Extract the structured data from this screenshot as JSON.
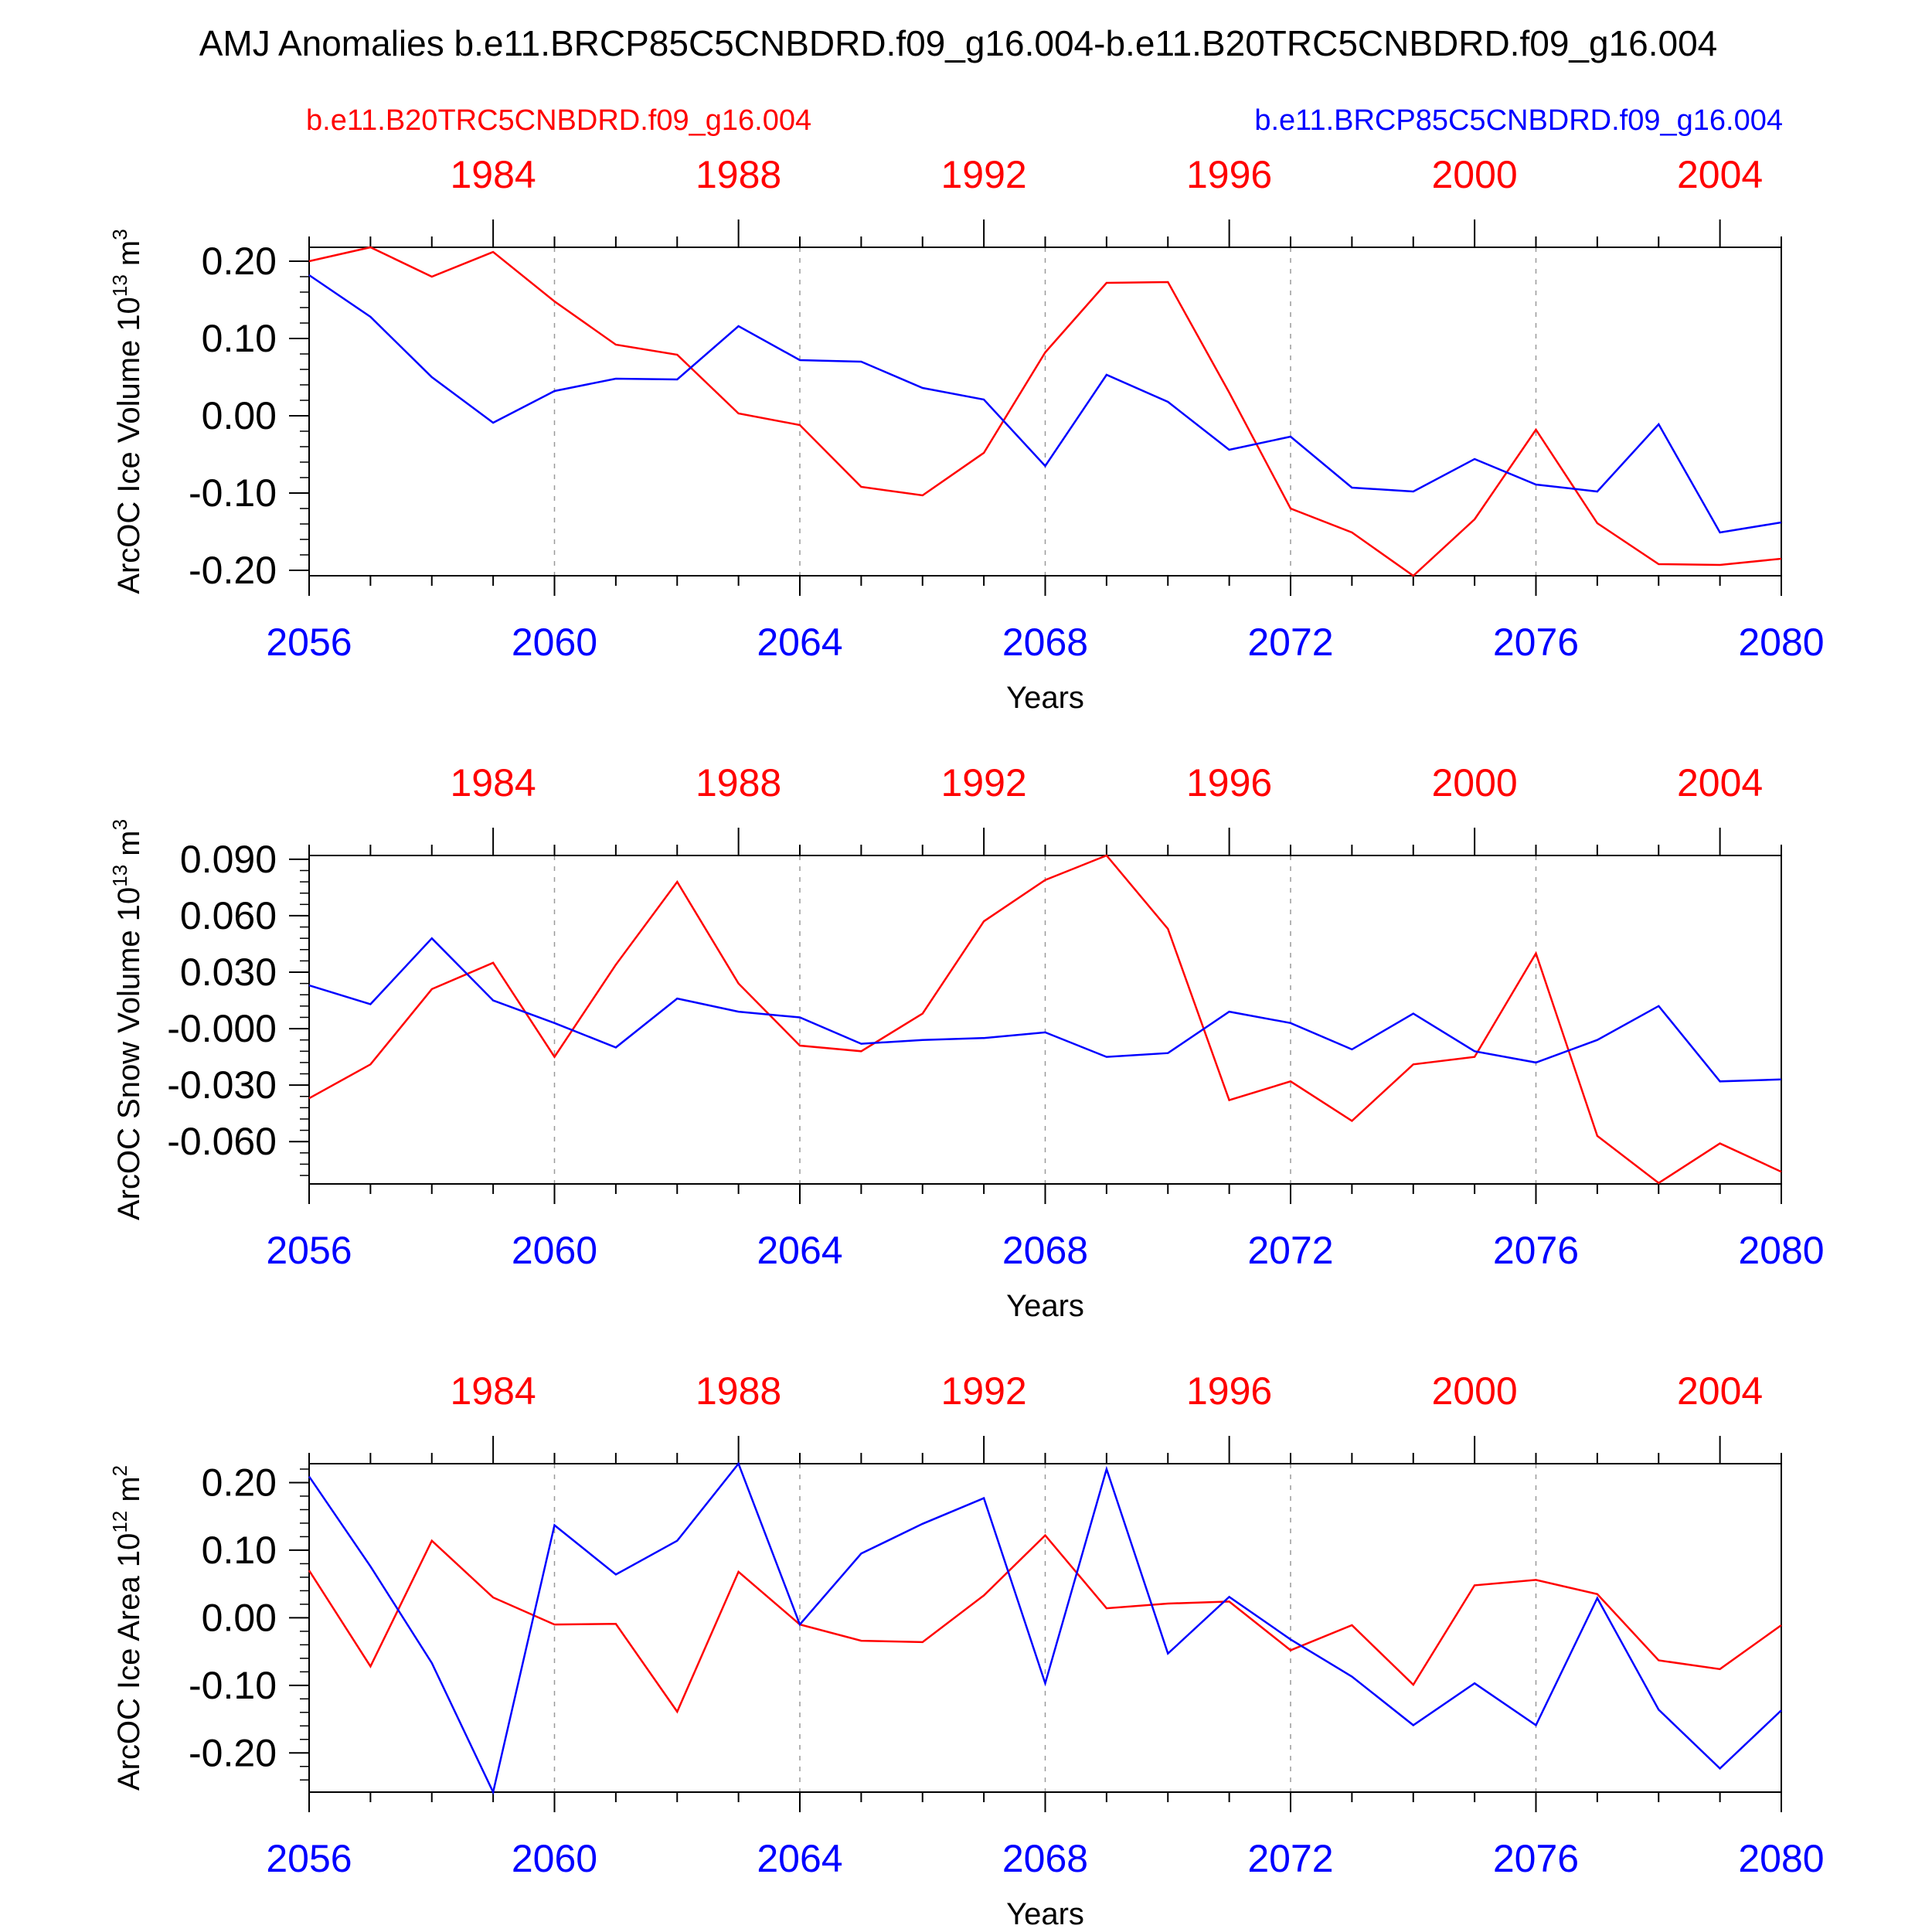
{
  "title": "AMJ Anomalies b.e11.BRCP85C5CNBDRD.f09_g16.004-b.e11.B20TRC5CNBDRD.f09_g16.004",
  "legend": {
    "red_label": "b.e11.B20TRC5CNBDRD.f09_g16.004",
    "blue_label": "b.e11.BRCP85C5CNBDRD.f09_g16.004"
  },
  "colors": {
    "red": "#ff0000",
    "blue": "#0000ff",
    "axis": "#000000",
    "grid": "#9a9a9a"
  },
  "chart_data": [
    {
      "type": "line",
      "ylabel_main": "ArcOC Ice Volume 10",
      "ylabel_sup": "13",
      "ylabel_unit": " m",
      "ylabel_unit_sup": "3",
      "xlabel": "Years",
      "x": [
        2056,
        2057,
        2058,
        2059,
        2060,
        2061,
        2062,
        2063,
        2064,
        2065,
        2066,
        2067,
        2068,
        2069,
        2070,
        2071,
        2072,
        2073,
        2074,
        2075,
        2076,
        2077,
        2078,
        2079,
        2080
      ],
      "xlim": [
        2056,
        2080
      ],
      "ylim": [
        -0.207,
        0.218
      ],
      "yticks": [
        0.2,
        0.1,
        0.0,
        -0.1,
        -0.2
      ],
      "ytick_labels": [
        "0.20",
        "0.10",
        "0.00",
        "-0.10",
        "-0.20"
      ],
      "yminor_step": 0.02,
      "bottom_ticks": [
        2056,
        2060,
        2064,
        2068,
        2072,
        2076,
        2080
      ],
      "bottom_tick_labels": [
        "2056",
        "2060",
        "2064",
        "2068",
        "2072",
        "2076",
        "2080"
      ],
      "top_ticks": [
        2059,
        2063,
        2067,
        2071,
        2075,
        2079
      ],
      "top_tick_labels": [
        "1984",
        "1988",
        "1992",
        "1996",
        "2000",
        "2004"
      ],
      "series": [
        {
          "name": "b.e11.B20TRC5CNBDRD.f09_g16.004",
          "color": "red",
          "values": [
            0.2,
            0.218,
            0.18,
            0.212,
            0.148,
            0.092,
            0.079,
            0.003,
            -0.012,
            -0.092,
            -0.103,
            -0.048,
            0.082,
            0.172,
            0.173,
            0.03,
            -0.12,
            -0.151,
            -0.207,
            -0.134,
            -0.018,
            -0.139,
            -0.192,
            -0.193,
            -0.185
          ]
        },
        {
          "name": "b.e11.BRCP85C5CNBDRD.f09_g16.004",
          "color": "blue",
          "values": [
            0.182,
            0.128,
            0.05,
            -0.009,
            0.032,
            0.048,
            0.047,
            0.116,
            0.072,
            0.07,
            0.036,
            0.021,
            -0.065,
            0.053,
            0.018,
            -0.044,
            -0.027,
            -0.093,
            -0.098,
            -0.056,
            -0.089,
            -0.098,
            -0.011,
            -0.151,
            -0.138
          ]
        }
      ]
    },
    {
      "type": "line",
      "ylabel_main": "ArcOC Snow Volume 10",
      "ylabel_sup": "13",
      "ylabel_unit": " m",
      "ylabel_unit_sup": "3",
      "xlabel": "Years",
      "x": [
        2056,
        2057,
        2058,
        2059,
        2060,
        2061,
        2062,
        2063,
        2064,
        2065,
        2066,
        2067,
        2068,
        2069,
        2070,
        2071,
        2072,
        2073,
        2074,
        2075,
        2076,
        2077,
        2078,
        2079,
        2080
      ],
      "xlim": [
        2056,
        2080
      ],
      "ylim": [
        -0.0825,
        0.092
      ],
      "yticks": [
        0.09,
        0.06,
        0.03,
        0.0,
        -0.03,
        -0.06
      ],
      "ytick_labels": [
        "0.090",
        "0.060",
        "0.030",
        "-0.000",
        "-0.030",
        "-0.060"
      ],
      "yminor_step": 0.006,
      "bottom_ticks": [
        2056,
        2060,
        2064,
        2068,
        2072,
        2076,
        2080
      ],
      "bottom_tick_labels": [
        "2056",
        "2060",
        "2064",
        "2068",
        "2072",
        "2076",
        "2080"
      ],
      "top_ticks": [
        2059,
        2063,
        2067,
        2071,
        2075,
        2079
      ],
      "top_tick_labels": [
        "1984",
        "1988",
        "1992",
        "1996",
        "2000",
        "2004"
      ],
      "series": [
        {
          "name": "b.e11.B20TRC5CNBDRD.f09_g16.004",
          "color": "red",
          "values": [
            -0.037,
            -0.019,
            0.021,
            0.035,
            -0.015,
            0.034,
            0.078,
            0.024,
            -0.009,
            -0.012,
            0.008,
            0.057,
            0.079,
            0.092,
            0.053,
            -0.038,
            -0.028,
            -0.049,
            -0.019,
            -0.015,
            0.04,
            -0.057,
            -0.082,
            -0.061,
            -0.076
          ]
        },
        {
          "name": "b.e11.BRCP85C5CNBDRD.f09_g16.004",
          "color": "blue",
          "values": [
            0.023,
            0.013,
            0.048,
            0.015,
            0.003,
            -0.01,
            0.016,
            0.009,
            0.006,
            -0.008,
            -0.006,
            -0.005,
            -0.002,
            -0.015,
            -0.013,
            0.009,
            0.003,
            -0.011,
            0.008,
            -0.012,
            -0.018,
            -0.006,
            0.012,
            -0.028,
            -0.027
          ]
        }
      ]
    },
    {
      "type": "line",
      "ylabel_main": "ArcOC Ice Area 10",
      "ylabel_sup": "12",
      "ylabel_unit": " m",
      "ylabel_unit_sup": "2",
      "xlabel": "Years",
      "x": [
        2056,
        2057,
        2058,
        2059,
        2060,
        2061,
        2062,
        2063,
        2064,
        2065,
        2066,
        2067,
        2068,
        2069,
        2070,
        2071,
        2072,
        2073,
        2074,
        2075,
        2076,
        2077,
        2078,
        2079,
        2080
      ],
      "xlim": [
        2056,
        2080
      ],
      "ylim": [
        -0.258,
        0.228
      ],
      "yticks": [
        0.2,
        0.1,
        0.0,
        -0.1,
        -0.2
      ],
      "ytick_labels": [
        "0.20",
        "0.10",
        "0.00",
        "-0.10",
        "-0.20"
      ],
      "yminor_step": 0.02,
      "bottom_ticks": [
        2056,
        2060,
        2064,
        2068,
        2072,
        2076,
        2080
      ],
      "bottom_tick_labels": [
        "2056",
        "2060",
        "2064",
        "2068",
        "2072",
        "2076",
        "2080"
      ],
      "top_ticks": [
        2059,
        2063,
        2067,
        2071,
        2075,
        2079
      ],
      "top_tick_labels": [
        "1984",
        "1988",
        "1992",
        "1996",
        "2000",
        "2004"
      ],
      "series": [
        {
          "name": "b.e11.B20TRC5CNBDRD.f09_g16.004",
          "color": "red",
          "values": [
            0.07,
            -0.072,
            0.114,
            0.03,
            -0.01,
            -0.009,
            -0.139,
            0.068,
            -0.01,
            -0.034,
            -0.036,
            0.033,
            0.122,
            0.014,
            0.021,
            0.024,
            -0.048,
            -0.011,
            -0.099,
            0.048,
            0.056,
            0.035,
            -0.063,
            -0.076,
            -0.011
          ]
        },
        {
          "name": "b.e11.BRCP85C5CNBDRD.f09_g16.004",
          "color": "blue",
          "values": [
            0.209,
            0.076,
            -0.067,
            -0.258,
            0.137,
            0.064,
            0.114,
            0.228,
            -0.01,
            0.095,
            0.139,
            0.177,
            -0.097,
            0.22,
            -0.053,
            0.031,
            -0.032,
            -0.087,
            -0.159,
            -0.097,
            -0.159,
            0.029,
            -0.136,
            -0.223,
            -0.137
          ]
        }
      ]
    }
  ]
}
